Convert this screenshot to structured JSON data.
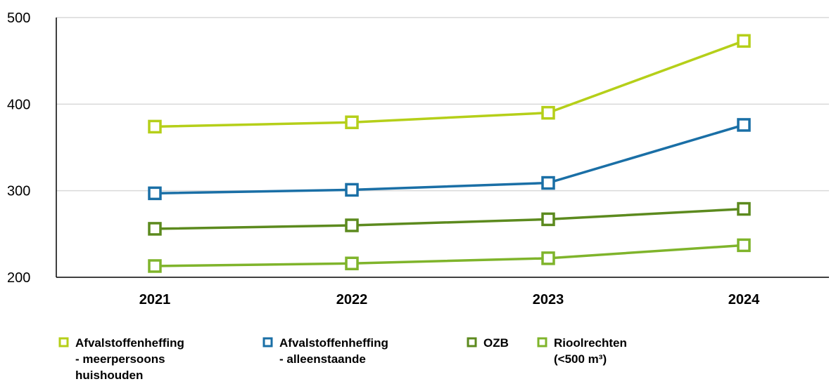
{
  "chart_data": {
    "type": "line",
    "categories": [
      "2021",
      "2022",
      "2023",
      "2024"
    ],
    "ylim": [
      200,
      500
    ],
    "yticks": [
      200,
      300,
      400,
      500
    ],
    "grid": true,
    "legend_placement": "bottom",
    "series": [
      {
        "name": "Afvalstoffenheffing - meerpersoons huishouden",
        "legend_lines": [
          "Afvalstoffenheffing",
          "- meerpersoons",
          "huishouden"
        ],
        "color": "#b5cf19",
        "values": [
          374,
          379,
          390,
          473
        ]
      },
      {
        "name": "Afvalstoffenheffing - alleenstaande",
        "legend_lines": [
          "Afvalstoffenheffing",
          "- alleenstaande"
        ],
        "color": "#1a6fa6",
        "values": [
          297,
          301,
          309,
          376
        ]
      },
      {
        "name": "OZB",
        "legend_lines": [
          "OZB"
        ],
        "color": "#5c8a1e",
        "values": [
          256,
          260,
          267,
          279
        ]
      },
      {
        "name": "Rioolrechten (<500 m³)",
        "legend_lines": [
          "Rioolrechten",
          "(<500 m³)"
        ],
        "color": "#7fb42b",
        "values": [
          213,
          216,
          222,
          237
        ]
      }
    ]
  }
}
